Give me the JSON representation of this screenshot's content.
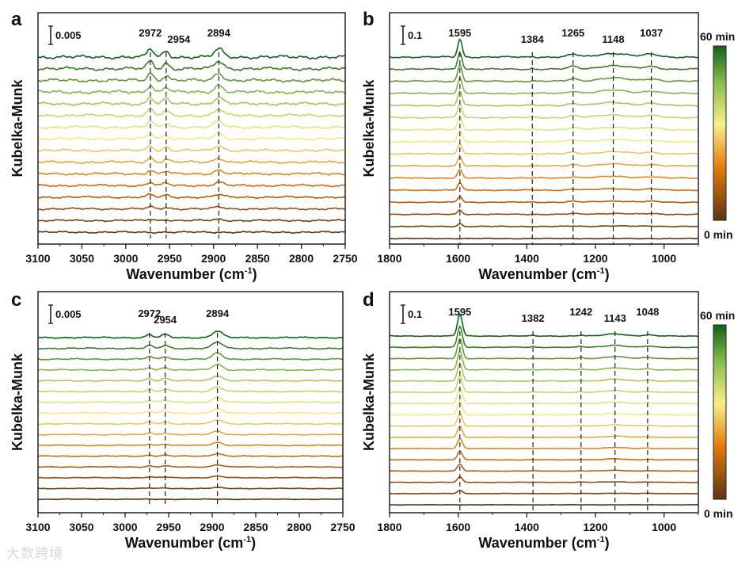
{
  "watermark": "大数跨境",
  "colors": {
    "t0": "#5b3512",
    "t1": "#d9730f",
    "t2": "#f6ef8c",
    "t3": "#8fbf4f",
    "t4": "#13621a"
  },
  "colorbar": {
    "top_label": "60 min",
    "bottom_label": "0 min"
  },
  "chart_data": [
    {
      "panel": "a",
      "type": "line",
      "xlabel": "Wavenumber (cm",
      "xlabel_sup": "-1",
      "xlabel_end": ")",
      "ylabel": "Kubelka-Munk",
      "xlim": [
        3100,
        2750
      ],
      "xticks": [
        3100,
        3050,
        3000,
        2950,
        2900,
        2850,
        2800,
        2750
      ],
      "minor_step": 25,
      "scale_bar": "0.005",
      "scale_value": 0.005,
      "n_curves": 16,
      "time_range_min": [
        0,
        60
      ],
      "noise": 0.00045,
      "peaks": [
        {
          "pos": 2972,
          "label": "2972",
          "amp": 0.0022,
          "width": 5
        },
        {
          "pos": 2954,
          "label": "2954",
          "amp": 0.0016,
          "width": 5
        },
        {
          "pos": 2894,
          "label": "2894",
          "amp": 0.0022,
          "width": 7
        }
      ]
    },
    {
      "panel": "b",
      "type": "line",
      "xlabel": "Wavenumber (cm",
      "xlabel_sup": "-1",
      "xlabel_end": ")",
      "ylabel": "Kubelka-Munk",
      "xlim": [
        1800,
        900
      ],
      "xticks": [
        1800,
        1600,
        1400,
        1200,
        1000
      ],
      "minor_step": 100,
      "scale_bar": "0.1",
      "scale_value": 0.1,
      "n_curves": 16,
      "time_range_min": [
        0,
        60
      ],
      "noise": 0.004,
      "peaks": [
        {
          "pos": 1595,
          "label": "1595",
          "amp": 0.1,
          "width": 9
        },
        {
          "pos": 1384,
          "label": "1384",
          "amp": 0.006,
          "width": 4
        },
        {
          "pos": 1265,
          "label": "1265",
          "amp": 0.015,
          "width": 20
        },
        {
          "pos": 1148,
          "label": "1148",
          "amp": 0.02,
          "width": 60
        },
        {
          "pos": 1037,
          "label": "1037",
          "amp": 0.015,
          "width": 30
        }
      ]
    },
    {
      "panel": "c",
      "type": "line",
      "xlabel": "Wavenumber (cm",
      "xlabel_sup": "-1",
      "xlabel_end": ")",
      "ylabel": "Kubelka-Munk",
      "xlim": [
        3100,
        2750
      ],
      "xticks": [
        3100,
        3050,
        3000,
        2950,
        2900,
        2850,
        2800,
        2750
      ],
      "minor_step": 25,
      "scale_bar": "0.005",
      "scale_value": 0.005,
      "n_curves": 16,
      "time_range_min": [
        0,
        60
      ],
      "noise": 0.00018,
      "peaks": [
        {
          "pos": 2972,
          "label": "2972",
          "amp": 0.0008,
          "width": 5
        },
        {
          "pos": 2954,
          "label": "2954",
          "amp": 0.0008,
          "width": 6
        },
        {
          "pos": 2894,
          "label": "2894",
          "amp": 0.0018,
          "width": 8
        }
      ]
    },
    {
      "panel": "d",
      "type": "line",
      "xlabel": "Wavenumber (cm",
      "xlabel_sup": "-1",
      "xlabel_end": ")",
      "ylabel": "Kubelka-Munk",
      "xlim": [
        1800,
        900
      ],
      "xticks": [
        1800,
        1600,
        1400,
        1200,
        1000
      ],
      "minor_step": 100,
      "scale_bar": "0.1",
      "scale_value": 0.1,
      "n_curves": 16,
      "time_range_min": [
        0,
        60
      ],
      "noise": 0.002,
      "peaks": [
        {
          "pos": 1595,
          "label": "1595",
          "amp": 0.12,
          "width": 10
        },
        {
          "pos": 1382,
          "label": "1382",
          "amp": 0.006,
          "width": 4
        },
        {
          "pos": 1242,
          "label": "1242",
          "amp": 0.005,
          "width": 10
        },
        {
          "pos": 1143,
          "label": "1143",
          "amp": 0.012,
          "width": 40
        },
        {
          "pos": 1048,
          "label": "1048",
          "amp": 0.006,
          "width": 20
        }
      ]
    }
  ]
}
